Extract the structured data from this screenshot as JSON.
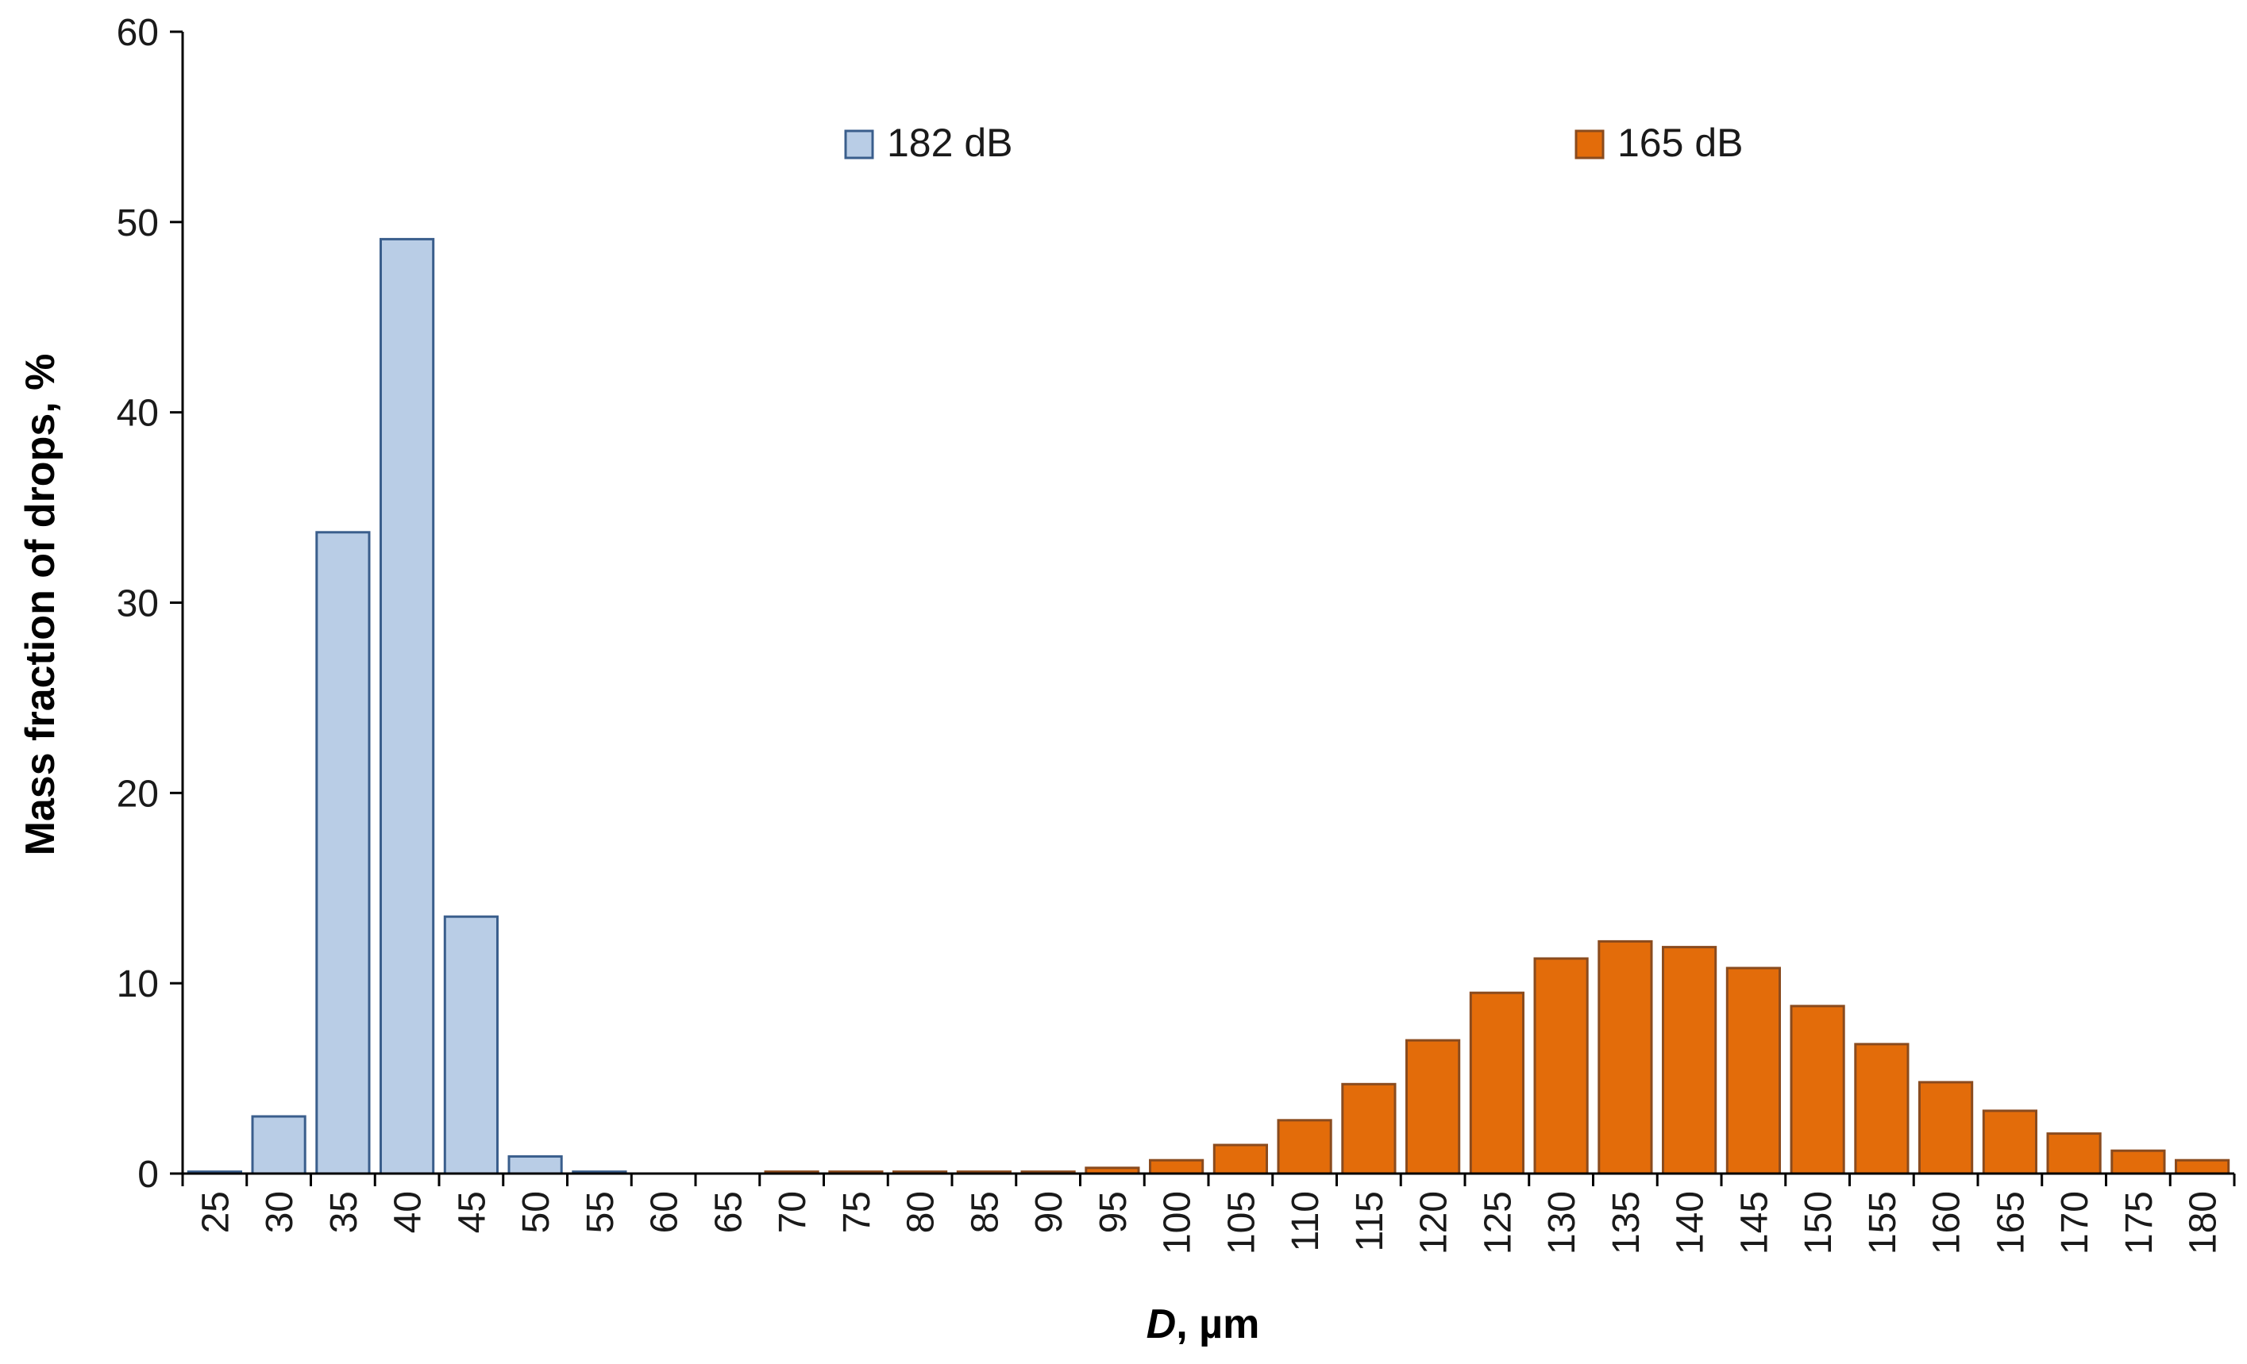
{
  "chart_data": {
    "type": "bar",
    "title": "",
    "xlabel_italic": "D",
    "xlabel_rest": ", µm",
    "ylabel": "Mass fraction of drops, %",
    "ylim": [
      0,
      60
    ],
    "yticks": [
      "0",
      "10",
      "20",
      "30",
      "40",
      "50",
      "60"
    ],
    "categories": [
      "25",
      "30",
      "35",
      "40",
      "45",
      "50",
      "55",
      "60",
      "65",
      "70",
      "75",
      "80",
      "85",
      "90",
      "95",
      "100",
      "105",
      "110",
      "115",
      "120",
      "125",
      "130",
      "135",
      "140",
      "145",
      "150",
      "155",
      "160",
      "165",
      "170",
      "175",
      "180"
    ],
    "legend_position": "top-center",
    "grid": false,
    "series": [
      {
        "name": "182 dB",
        "fill": "#b9cde6",
        "stroke": "#3a5e8c",
        "values": [
          0.1,
          3.0,
          33.7,
          49.1,
          13.5,
          0.9,
          0.1,
          0,
          0,
          0,
          0,
          0,
          0,
          0,
          0,
          0,
          0,
          0,
          0,
          0,
          0,
          0,
          0,
          0,
          0,
          0,
          0,
          0,
          0,
          0,
          0,
          0
        ]
      },
      {
        "name": "165 dB",
        "fill": "#e36c0a",
        "stroke": "#8a4b1e",
        "values": [
          0,
          0,
          0,
          0,
          0,
          0,
          0,
          0,
          0,
          0.1,
          0.1,
          0.1,
          0.1,
          0.1,
          0.3,
          0.7,
          1.5,
          2.8,
          4.7,
          7.0,
          9.5,
          11.3,
          12.2,
          11.9,
          10.8,
          8.8,
          6.8,
          4.8,
          3.3,
          2.1,
          1.2,
          0.7
        ]
      }
    ]
  }
}
